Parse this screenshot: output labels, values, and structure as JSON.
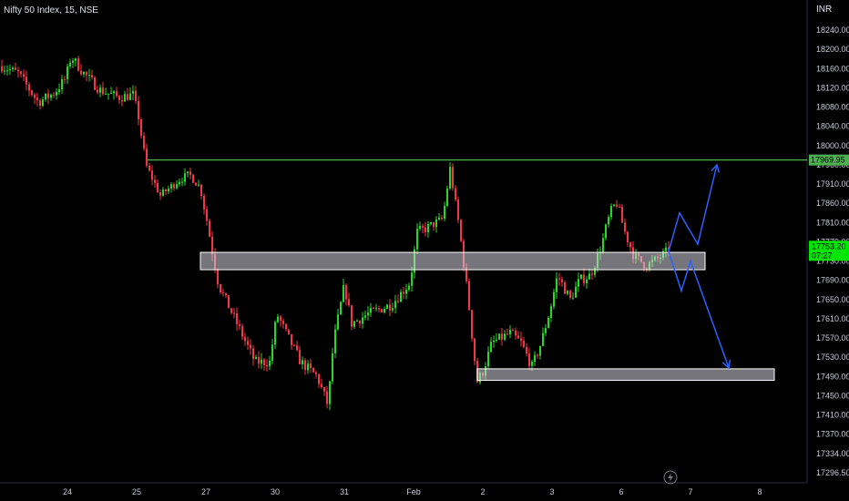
{
  "header": {
    "symbol_line": "Nifty 50 Index, 15, NSE",
    "currency": "INR"
  },
  "chart_data": {
    "type": "candlestick",
    "title": "Nifty 50 Index, 15, NSE",
    "interval": "15",
    "exchange": "NSE",
    "currency": "INR",
    "y_ticks": [
      18240,
      18200,
      18160,
      18120,
      18080,
      18040,
      18000,
      17960,
      17910,
      17860,
      17810,
      17770,
      17730,
      17690,
      17650,
      17610,
      17570,
      17530,
      17490,
      17450,
      17410,
      17370,
      17334,
      17296.5
    ],
    "y_tick_labels": [
      "18240.00",
      "18200.00",
      "18160.00",
      "18120.00",
      "18080.00",
      "18040.00",
      "18000.00",
      "17960.00",
      "17910.00",
      "17860.00",
      "17810.00",
      "17770.00",
      "17730.00",
      "17690.00",
      "17650.00",
      "17610.00",
      "17570.00",
      "17530.00",
      "17490.00",
      "17450.00",
      "17410.00",
      "17370.00",
      "17334.00",
      "17296.50"
    ],
    "x_tick_labels": [
      "24",
      "25",
      "27",
      "30",
      "31",
      "Feb",
      "2",
      "3",
      "6",
      "7",
      "8"
    ],
    "resistance_line": {
      "value": 17969.95,
      "label": "17969.95",
      "color": "#4caf50"
    },
    "last_price": {
      "label": "17753.20",
      "countdown": "07:27",
      "color": "#00e600"
    },
    "zones": [
      {
        "name": "support-zone-upper",
        "from_x": "27",
        "to_x": "7",
        "low": 17712,
        "high": 17748
      },
      {
        "name": "target-zone-lower",
        "from_x": "2",
        "to_x": "8",
        "low": 17482,
        "high": 17506
      }
    ],
    "projections": [
      {
        "name": "bullish-projection",
        "points": [
          [
            "6",
            17750
          ],
          [
            "7",
            17835
          ],
          [
            "7",
            17765
          ],
          [
            "7",
            17960
          ]
        ]
      },
      {
        "name": "bearish-projection",
        "points": [
          [
            "6",
            17750
          ],
          [
            "7",
            17668
          ],
          [
            "7",
            17730
          ],
          [
            "8",
            17508
          ]
        ]
      }
    ],
    "colors": {
      "up": "#26d926",
      "down": "#f23645",
      "background": "#000000",
      "zone_fill": "#d6d6e0",
      "projection": "#2962ff"
    },
    "grid": false
  }
}
